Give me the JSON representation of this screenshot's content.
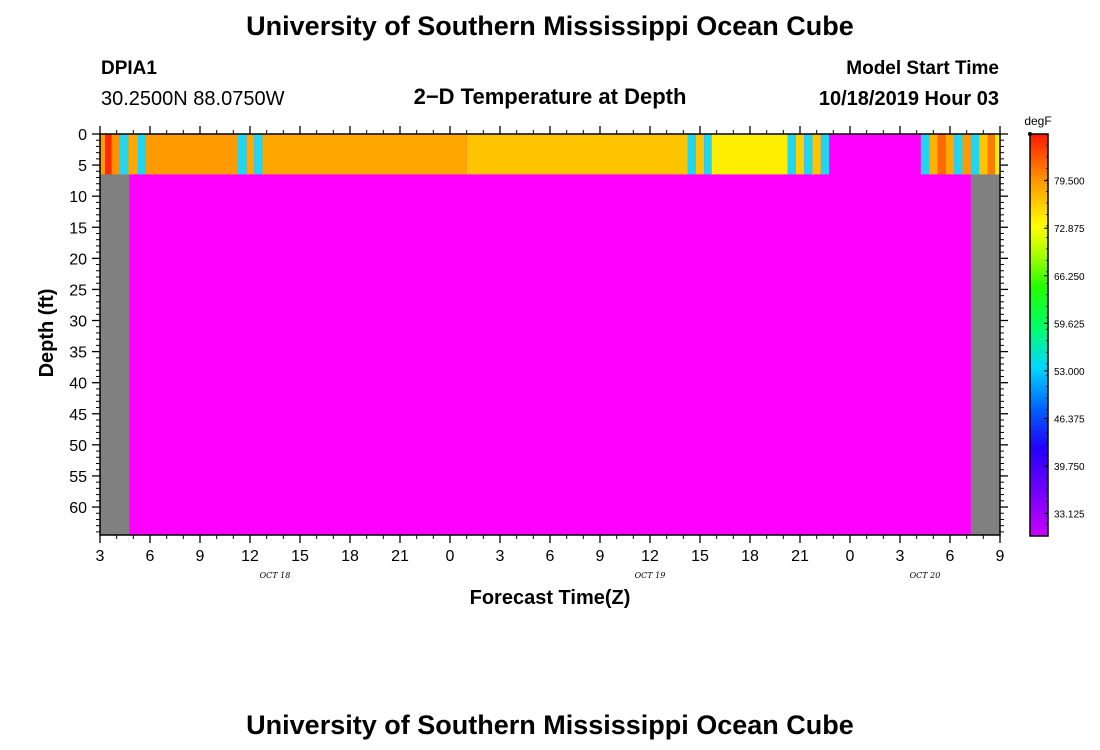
{
  "header": {
    "title": "University of Southern Mississippi Ocean Cube",
    "station_id": "DPIA1",
    "coordinates": "30.2500N 88.0750W",
    "plot_title": "2−D Temperature at Depth",
    "model_label": "Model Start Time",
    "model_time": "10/18/2019 Hour 03"
  },
  "footer": {
    "title": "University of Southern Mississippi Ocean Cube"
  },
  "chart_data": {
    "type": "heatmap",
    "xlabel": "Forecast Time(Z)",
    "ylabel": "Depth (ft)",
    "x_unit": "hours since 2019-10-18 03Z",
    "x_range": [
      0,
      54
    ],
    "y_range": [
      0,
      64.5
    ],
    "y_inverted": true,
    "x_tick_labels": [
      "3",
      "6",
      "9",
      "12",
      "15",
      "18",
      "21",
      "0",
      "3",
      "6",
      "9",
      "12",
      "15",
      "18",
      "21",
      "0",
      "3",
      "6",
      "9"
    ],
    "y_tick_labels": [
      "0",
      "5",
      "10",
      "15",
      "20",
      "25",
      "30",
      "35",
      "40",
      "45",
      "50",
      "55",
      "60"
    ],
    "date_labels": [
      {
        "text": "OCT  18",
        "x_hours": 10.5
      },
      {
        "text": "OCT  19",
        "x_hours": 33
      },
      {
        "text": "OCT  20",
        "x_hours": 49.5
      }
    ],
    "colorbar": {
      "unit": "degF",
      "min": 30,
      "max": 86,
      "tick_labels": [
        "79.500",
        "72.875",
        "66.250",
        "59.625",
        "53.000",
        "46.375",
        "39.750",
        "33.125"
      ]
    },
    "surface_layer_depth_ft": 6.5,
    "grey_mask_hours": [
      [
        0,
        1.75
      ],
      [
        52.25,
        54
      ]
    ],
    "deep_fill": "magenta",
    "surface_segments": [
      {
        "x0": 0.0,
        "x1": 0.3,
        "color": "#ff9a00"
      },
      {
        "x0": 0.3,
        "x1": 0.7,
        "color": "#ff2a00"
      },
      {
        "x0": 0.7,
        "x1": 1.2,
        "color": "#ff9000"
      },
      {
        "x0": 1.2,
        "x1": 1.7,
        "color": "#21d6f0"
      },
      {
        "x0": 1.7,
        "x1": 2.25,
        "color": "#ffa800"
      },
      {
        "x0": 2.25,
        "x1": 2.75,
        "color": "#21d6f0"
      },
      {
        "x0": 2.75,
        "x1": 8.25,
        "color": "#ff9a00"
      },
      {
        "x0": 8.25,
        "x1": 8.8,
        "color": "#21d6f0"
      },
      {
        "x0": 8.8,
        "x1": 9.25,
        "color": "#ffa800"
      },
      {
        "x0": 9.25,
        "x1": 9.75,
        "color": "#21d6f0"
      },
      {
        "x0": 9.75,
        "x1": 22.0,
        "color": "#ffa600"
      },
      {
        "x0": 22.0,
        "x1": 35.25,
        "color": "#ffc400"
      },
      {
        "x0": 35.25,
        "x1": 35.75,
        "color": "#21d6f0"
      },
      {
        "x0": 35.75,
        "x1": 36.25,
        "color": "#ffc400"
      },
      {
        "x0": 36.25,
        "x1": 36.7,
        "color": "#21d6f0"
      },
      {
        "x0": 36.7,
        "x1": 41.25,
        "color": "#ffee00"
      },
      {
        "x0": 41.25,
        "x1": 41.75,
        "color": "#21d6f0"
      },
      {
        "x0": 41.75,
        "x1": 42.25,
        "color": "#ffd000"
      },
      {
        "x0": 42.25,
        "x1": 42.75,
        "color": "#21d6f0"
      },
      {
        "x0": 42.75,
        "x1": 43.25,
        "color": "#ffc400"
      },
      {
        "x0": 43.25,
        "x1": 43.75,
        "color": "#21d6f0"
      },
      {
        "x0": 43.75,
        "x1": 49.25,
        "color": "#ff00ff"
      },
      {
        "x0": 49.25,
        "x1": 49.75,
        "color": "#21d6f0"
      },
      {
        "x0": 49.75,
        "x1": 50.25,
        "color": "#ffb000"
      },
      {
        "x0": 50.25,
        "x1": 50.75,
        "color": "#ff6a00"
      },
      {
        "x0": 50.75,
        "x1": 51.25,
        "color": "#ffaa00"
      },
      {
        "x0": 51.25,
        "x1": 51.75,
        "color": "#21d6f0"
      },
      {
        "x0": 51.75,
        "x1": 52.25,
        "color": "#ff9a00"
      },
      {
        "x0": 52.25,
        "x1": 52.75,
        "color": "#21d6f0"
      },
      {
        "x0": 52.75,
        "x1": 53.25,
        "color": "#ffc400"
      },
      {
        "x0": 53.25,
        "x1": 53.7,
        "color": "#ff7a00"
      },
      {
        "x0": 53.7,
        "x1": 54.0,
        "color": "#ffee00"
      }
    ]
  }
}
